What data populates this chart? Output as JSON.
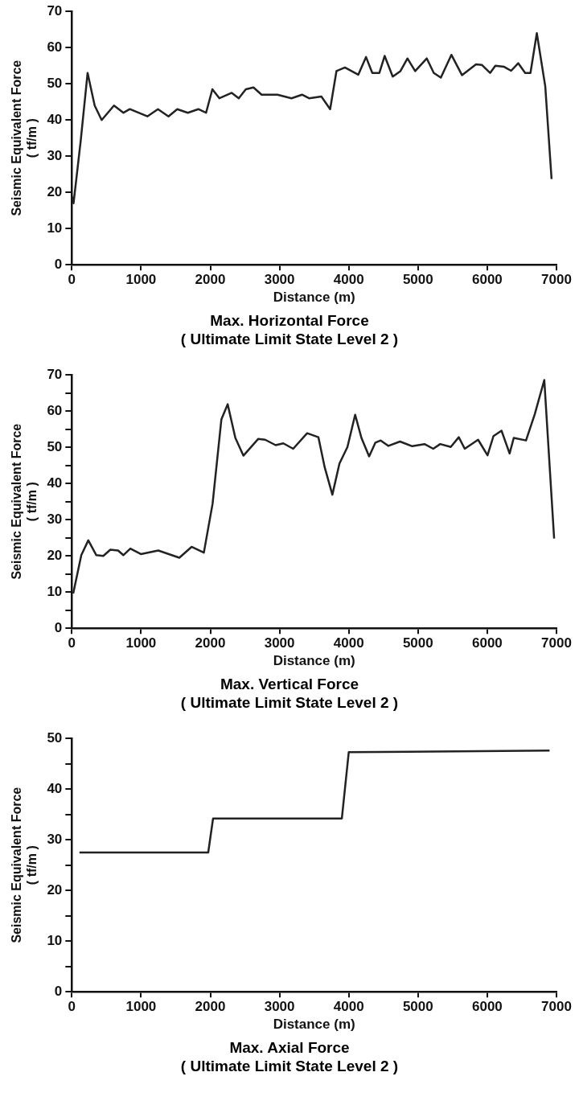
{
  "chart_data": [
    {
      "type": "line",
      "title": "Max. Horizontal Force\n( Ultimate Limit State Level 2 )",
      "xlabel": "Distance (m)",
      "ylabel": "Seismic Equivalent Force\n( tf/m )",
      "x": [
        0,
        25,
        127,
        228,
        330,
        431,
        609,
        746,
        838,
        1091,
        1244,
        1396,
        1523,
        1675,
        1827,
        1939,
        2030,
        2132,
        2310,
        2411,
        2513,
        2624,
        2741,
        2970,
        3173,
        3325,
        3426,
        3604,
        3731,
        3822,
        3944,
        4137,
        4249,
        4340,
        4442,
        4518,
        4635,
        4746,
        4848,
        4959,
        5127,
        5228,
        5330,
        5482,
        5635,
        5838,
        5924,
        6041,
        6117,
        6244,
        6345,
        6447,
        6548,
        6624,
        6716,
        6838,
        6929
      ],
      "series": [
        {
          "color": "#222222",
          "values": [
            19,
            17,
            34,
            53,
            44,
            40,
            44,
            42,
            43,
            41,
            43,
            41,
            43,
            42,
            43,
            42,
            48.5,
            46,
            47.5,
            46,
            48.5,
            49,
            47,
            47,
            46,
            47,
            46,
            46.5,
            43,
            53.5,
            54.5,
            52.5,
            57.4,
            53,
            53,
            57.7,
            52,
            53.5,
            57,
            53.5,
            57,
            53,
            51.7,
            58,
            52.4,
            55.4,
            55.2,
            53,
            55,
            54.7,
            53.6,
            55.7,
            53,
            53,
            64,
            49.3,
            23.7
          ]
        }
      ],
      "xlim": [
        0,
        7000
      ],
      "xticks": [
        0,
        1000,
        2000,
        3000,
        4000,
        5000,
        6000,
        7000
      ],
      "ylim": [
        0,
        70
      ],
      "yticks": [
        0,
        10,
        20,
        30,
        40,
        50,
        60,
        70
      ],
      "grid": false,
      "legend": false
    },
    {
      "type": "line",
      "title": "Max. Vertical Force\n( Ultimate Limit State Level 2 )",
      "xlabel": "Distance (m)",
      "ylabel": "Seismic Equivalent Force\n( tf/m )",
      "x": [
        20,
        137,
        238,
        354,
        455,
        556,
        668,
        744,
        845,
        997,
        1249,
        1553,
        1730,
        1907,
        2033,
        2160,
        2251,
        2362,
        2478,
        2691,
        2792,
        2944,
        3055,
        3197,
        3399,
        3561,
        3652,
        3763,
        3865,
        3981,
        4092,
        4183,
        4294,
        4385,
        4461,
        4573,
        4740,
        4917,
        5094,
        5220,
        5321,
        5473,
        5589,
        5675,
        5868,
        6004,
        6090,
        6206,
        6323,
        6383,
        6560,
        6687,
        6824,
        6966
      ],
      "series": [
        {
          "color": "#222222",
          "values": [
            9.6,
            20.2,
            24.3,
            20.2,
            20,
            21.7,
            21.5,
            20.2,
            22,
            20.5,
            21.5,
            19.5,
            22.5,
            20.9,
            34.4,
            57.7,
            61.9,
            52.6,
            47.7,
            52.3,
            52.1,
            50.6,
            51.1,
            49.6,
            53.9,
            52.8,
            44.5,
            36.9,
            45.5,
            50.1,
            59,
            52.6,
            47.5,
            51.3,
            51.9,
            50.4,
            51.6,
            50.3,
            50.9,
            49.6,
            50.9,
            50.1,
            52.8,
            49.6,
            52.1,
            47.8,
            53.1,
            54.6,
            48.3,
            52.6,
            51.9,
            59.2,
            68.6,
            24.8
          ]
        }
      ],
      "xlim": [
        0,
        7000
      ],
      "xticks": [
        0,
        1000,
        2000,
        3000,
        4000,
        5000,
        6000,
        7000
      ],
      "ylim": [
        0,
        70
      ],
      "yticks": [
        0,
        {
          "value": 5,
          "label": null
        },
        10,
        {
          "value": 15,
          "label": null
        },
        20,
        {
          "value": 25,
          "label": null
        },
        30,
        {
          "value": 35,
          "label": null
        },
        40,
        {
          "value": 45,
          "label": null
        },
        50,
        {
          "value": 55,
          "label": null
        },
        60,
        {
          "value": 65,
          "label": null
        },
        70
      ],
      "grid": false,
      "legend": false
    },
    {
      "type": "line",
      "title": "Max. Axial Force\n( Ultimate Limit State Level 2 )",
      "xlabel": "Distance (m)",
      "ylabel": "Seismic Equivalent Force\n( tf/m )",
      "x": [
        110,
        1970,
        2040,
        3900,
        4000,
        6900
      ],
      "series": [
        {
          "color": "#222222",
          "values": [
            27.5,
            27.5,
            34.2,
            34.2,
            47.3,
            47.6
          ]
        }
      ],
      "xlim": [
        0,
        7000
      ],
      "xticks": [
        0,
        1000,
        2000,
        3000,
        4000,
        5000,
        6000,
        7000
      ],
      "ylim": [
        0,
        50
      ],
      "yticks": [
        0,
        {
          "value": 5,
          "label": null
        },
        10,
        {
          "value": 15,
          "label": null
        },
        20,
        {
          "value": 25,
          "label": null
        },
        30,
        {
          "value": 35,
          "label": null
        },
        40,
        {
          "value": 45,
          "label": null
        },
        50
      ],
      "grid": false,
      "legend": false
    }
  ]
}
